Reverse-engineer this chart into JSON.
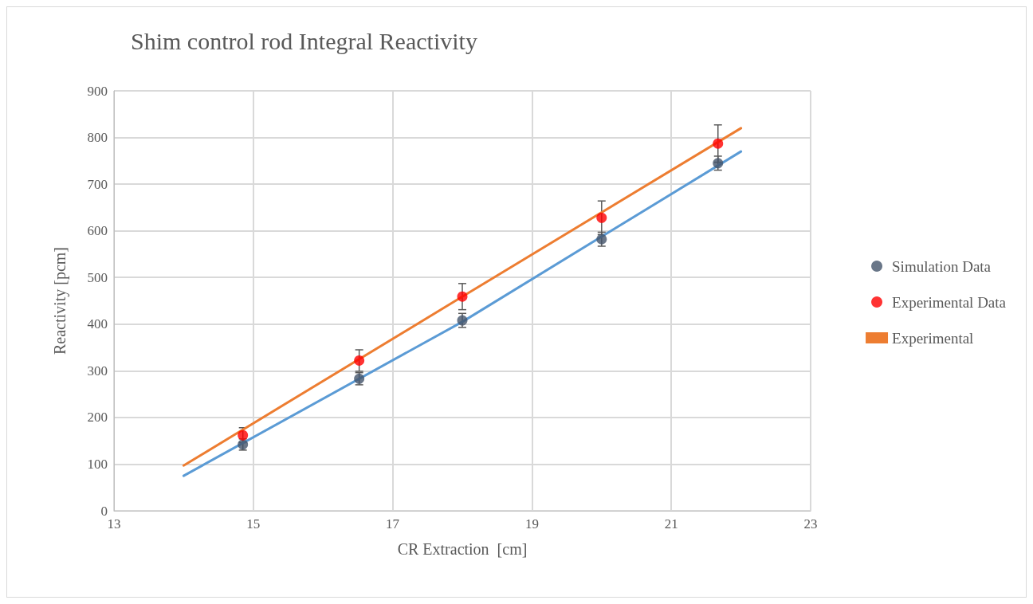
{
  "chart_data": {
    "type": "scatter",
    "title": "Shim control rod Integral Reactivity",
    "xlabel": "CR Extraction  [cm]",
    "ylabel": "Reactivity [pcm]",
    "xlim": [
      13,
      23
    ],
    "xticks": [
      13,
      15,
      17,
      19,
      21,
      23
    ],
    "ylim": [
      0,
      900
    ],
    "yticks": [
      0,
      100,
      200,
      300,
      400,
      500,
      600,
      700,
      800,
      900
    ],
    "grid": true,
    "legend": "right",
    "series": [
      {
        "name": "Simulation Data",
        "marker": "circle",
        "color": "#44546a",
        "x": [
          14.85,
          16.52,
          18.0,
          20.0,
          21.67
        ],
        "values": [
          142,
          283,
          408,
          582,
          745
        ],
        "errors": [
          12,
          13,
          15,
          15,
          15
        ]
      },
      {
        "name": "Experimental Data",
        "marker": "circle",
        "color": "#ff0000",
        "x": [
          14.85,
          16.52,
          18.0,
          20.0,
          21.67
        ],
        "values": [
          162,
          322,
          459,
          628,
          787
        ],
        "errors": [
          16,
          23,
          28,
          36,
          40
        ]
      },
      {
        "type": "line",
        "marker": "none",
        "color": "#5b9bd5",
        "x": [
          14,
          18,
          22
        ],
        "values": [
          75,
          405,
          770
        ]
      },
      {
        "name": "Experimental",
        "type": "line",
        "marker": "none",
        "color": "#ed7d31",
        "x": [
          14,
          18,
          22
        ],
        "values": [
          97,
          459,
          820
        ]
      }
    ]
  }
}
